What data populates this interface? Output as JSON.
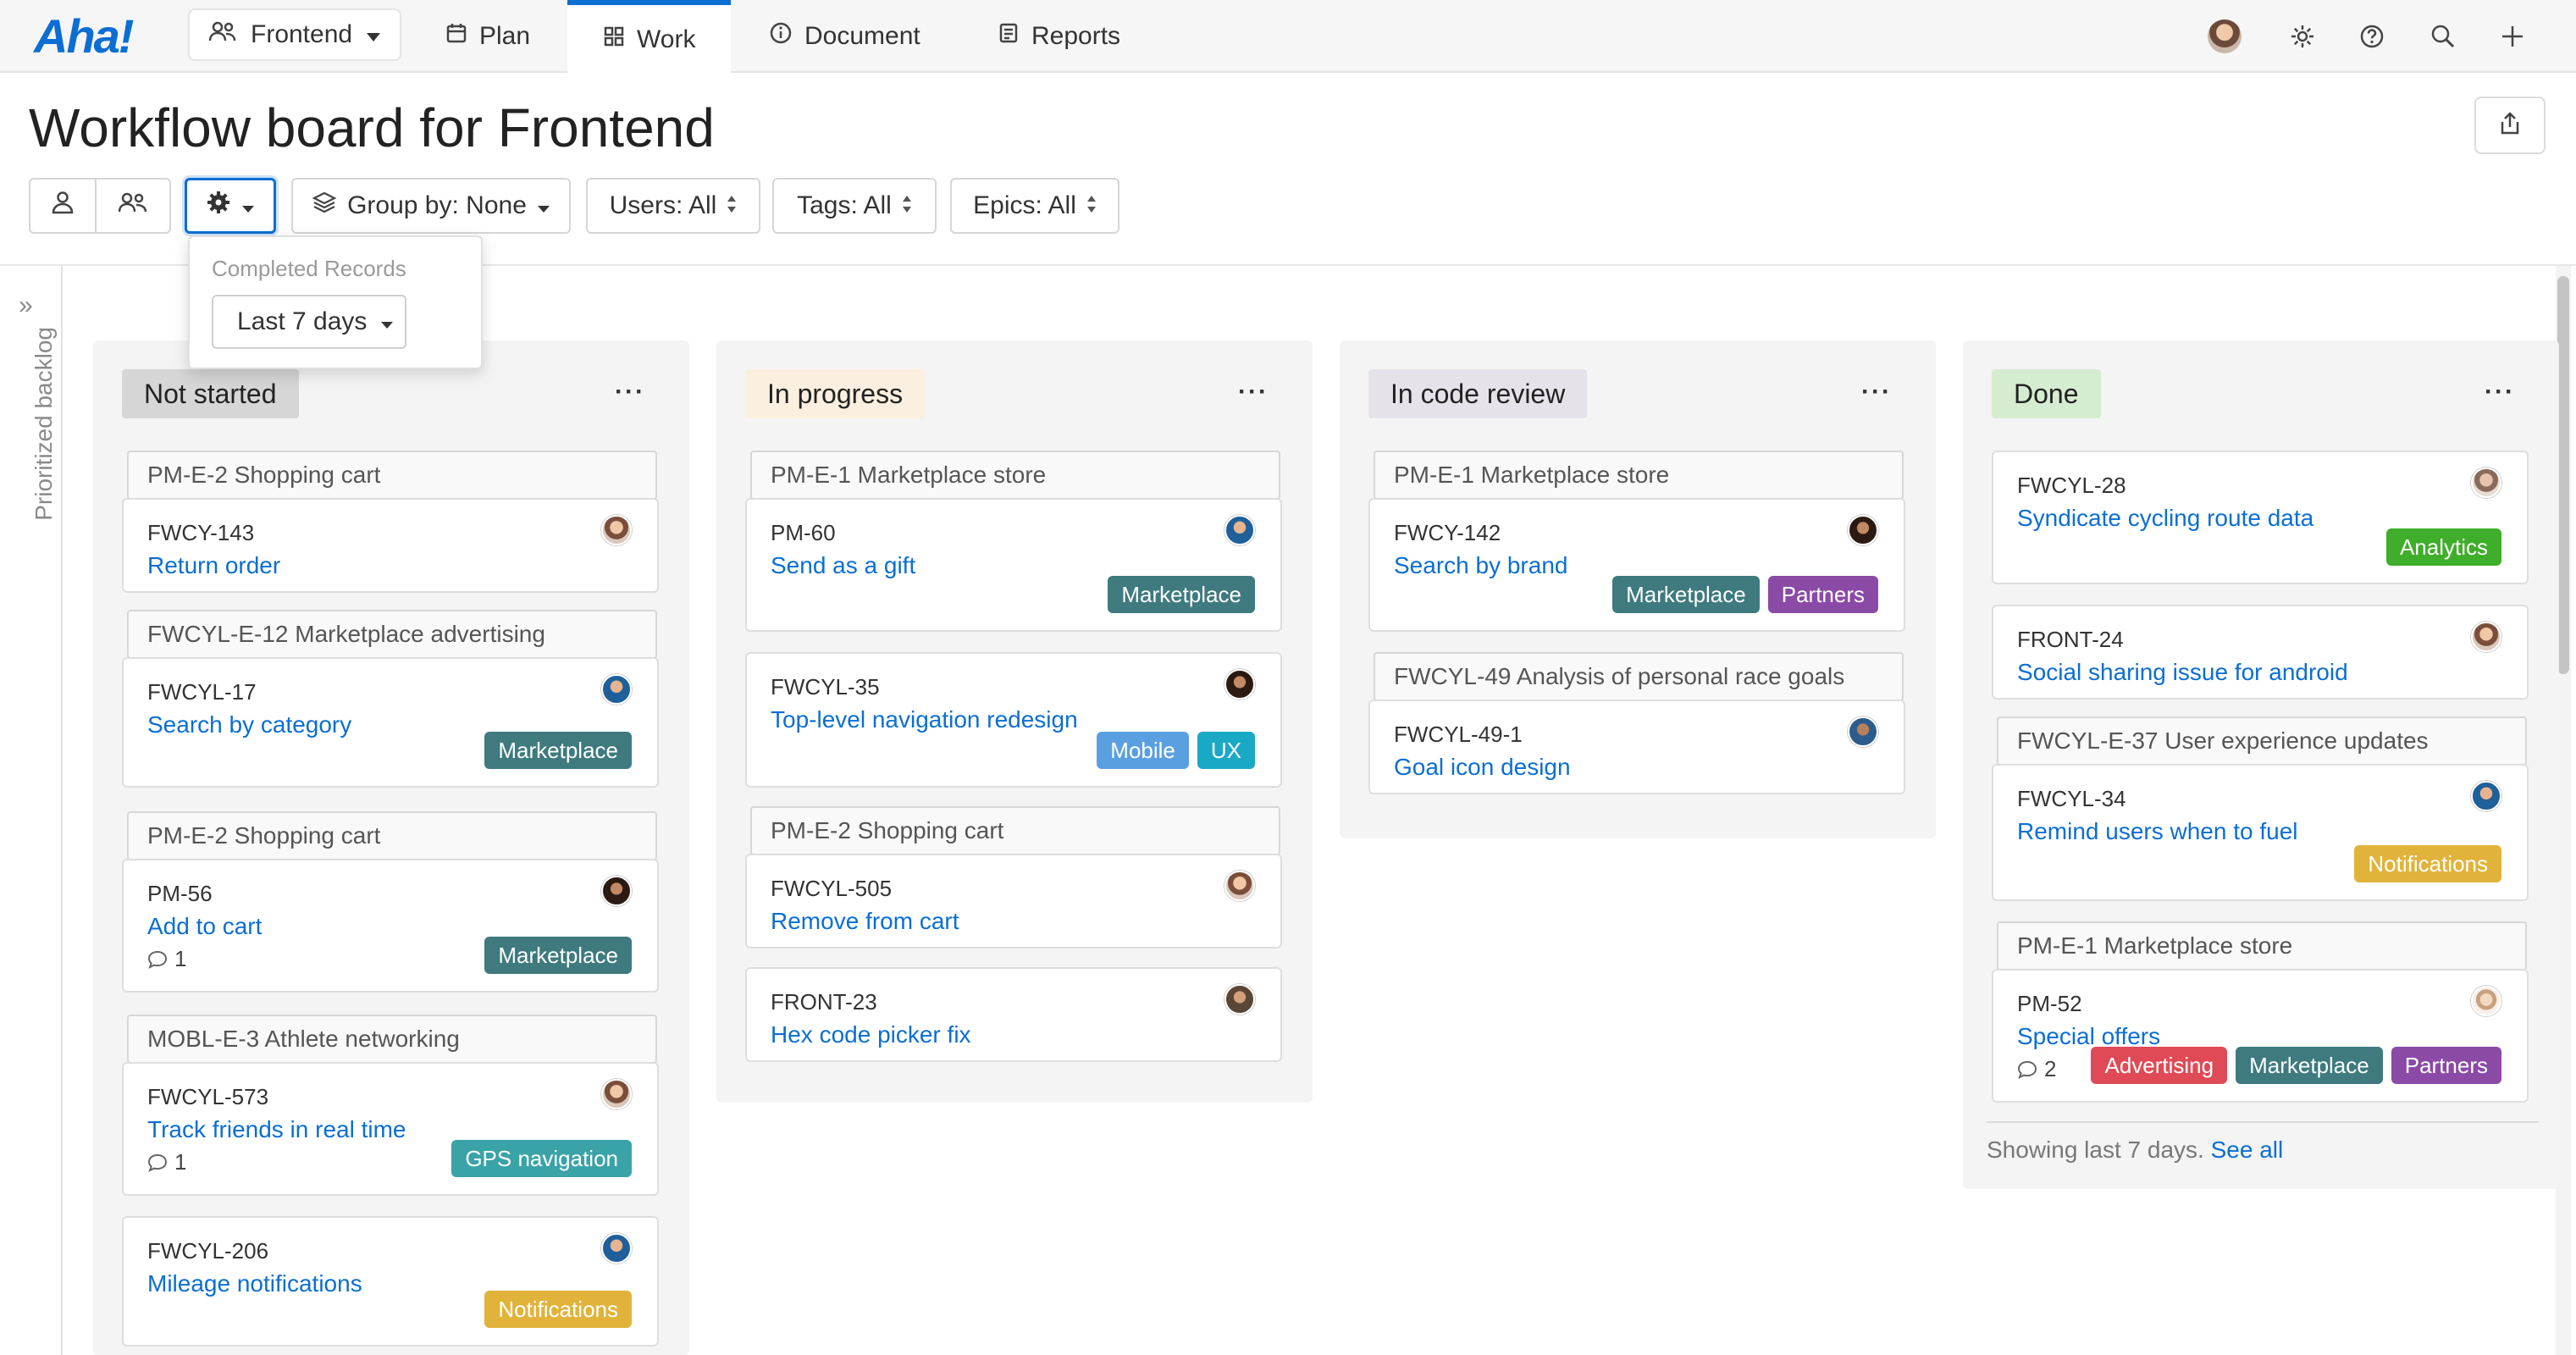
{
  "nav": {
    "logo": "Aha!",
    "workspace": "Frontend",
    "tabs": [
      "Plan",
      "Work",
      "Document",
      "Reports"
    ]
  },
  "header": {
    "title": "Workflow board for Frontend",
    "group_by": "Group by: None",
    "users": "Users: All",
    "tags": "Tags: All",
    "epics": "Epics: All"
  },
  "popover": {
    "label": "Completed Records",
    "value": "Last 7 days"
  },
  "sidebar": {
    "backlog_label": "Prioritized backlog"
  },
  "colors": {
    "accent": "#0b6ed3",
    "marketplace": "#3e7a7e",
    "partners": "#8b4aa6",
    "mobile": "#5aa0e0",
    "ux": "#1aa9c5",
    "analytics": "#3fae2a",
    "notifications": "#e1b33a",
    "gps": "#3aa3a8",
    "advertising": "#e04a56"
  },
  "columns": [
    {
      "name": "Not started",
      "groups": [
        "PM-E-2 Shopping cart",
        "FWCYL-E-12 Marketplace advertising",
        "PM-E-2 Shopping cart",
        "MOBL-E-3 Athlete networking"
      ],
      "cards": [
        {
          "id": "FWCY-143",
          "title": "Return order"
        },
        {
          "id": "FWCYL-17",
          "title": "Search by category",
          "tags": [
            "Marketplace"
          ]
        },
        {
          "id": "PM-56",
          "title": "Add to cart",
          "comments": "1",
          "tags": [
            "Marketplace"
          ]
        },
        {
          "id": "FWCYL-573",
          "title": "Track friends in real time",
          "comments": "1",
          "tags": [
            "GPS navigation"
          ]
        },
        {
          "id": "FWCYL-206",
          "title": "Mileage notifications",
          "tags": [
            "Notifications"
          ]
        }
      ]
    },
    {
      "name": "In progress",
      "groups": [
        "PM-E-1 Marketplace store",
        "PM-E-2 Shopping cart"
      ],
      "cards": [
        {
          "id": "PM-60",
          "title": "Send as a gift",
          "tags": [
            "Marketplace"
          ]
        },
        {
          "id": "FWCYL-35",
          "title": "Top-level navigation redesign",
          "tags": [
            "Mobile",
            "UX"
          ]
        },
        {
          "id": "FWCYL-505",
          "title": "Remove from cart"
        },
        {
          "id": "FRONT-23",
          "title": "Hex code picker fix"
        }
      ]
    },
    {
      "name": "In code review",
      "groups": [
        "PM-E-1 Marketplace store",
        "FWCYL-49 Analysis of personal race goals"
      ],
      "cards": [
        {
          "id": "FWCY-142",
          "title": "Search by brand",
          "tags": [
            "Marketplace",
            "Partners"
          ]
        },
        {
          "id": "FWCYL-49-1",
          "title": "Goal icon design"
        }
      ]
    },
    {
      "name": "Done",
      "groups": [
        "FWCYL-E-37 User experience updates",
        "PM-E-1 Marketplace store"
      ],
      "cards": [
        {
          "id": "FWCYL-28",
          "title": "Syndicate cycling route data",
          "tags": [
            "Analytics"
          ]
        },
        {
          "id": "FRONT-24",
          "title": "Social sharing issue for android"
        },
        {
          "id": "FWCYL-34",
          "title": "Remind users when to fuel",
          "tags": [
            "Notifications"
          ]
        },
        {
          "id": "PM-52",
          "title": "Special offers",
          "comments": "2",
          "tags": [
            "Advertising",
            "Marketplace",
            "Partners"
          ]
        }
      ],
      "footnote": "Showing last 7 days.",
      "see_all": "See all"
    }
  ]
}
